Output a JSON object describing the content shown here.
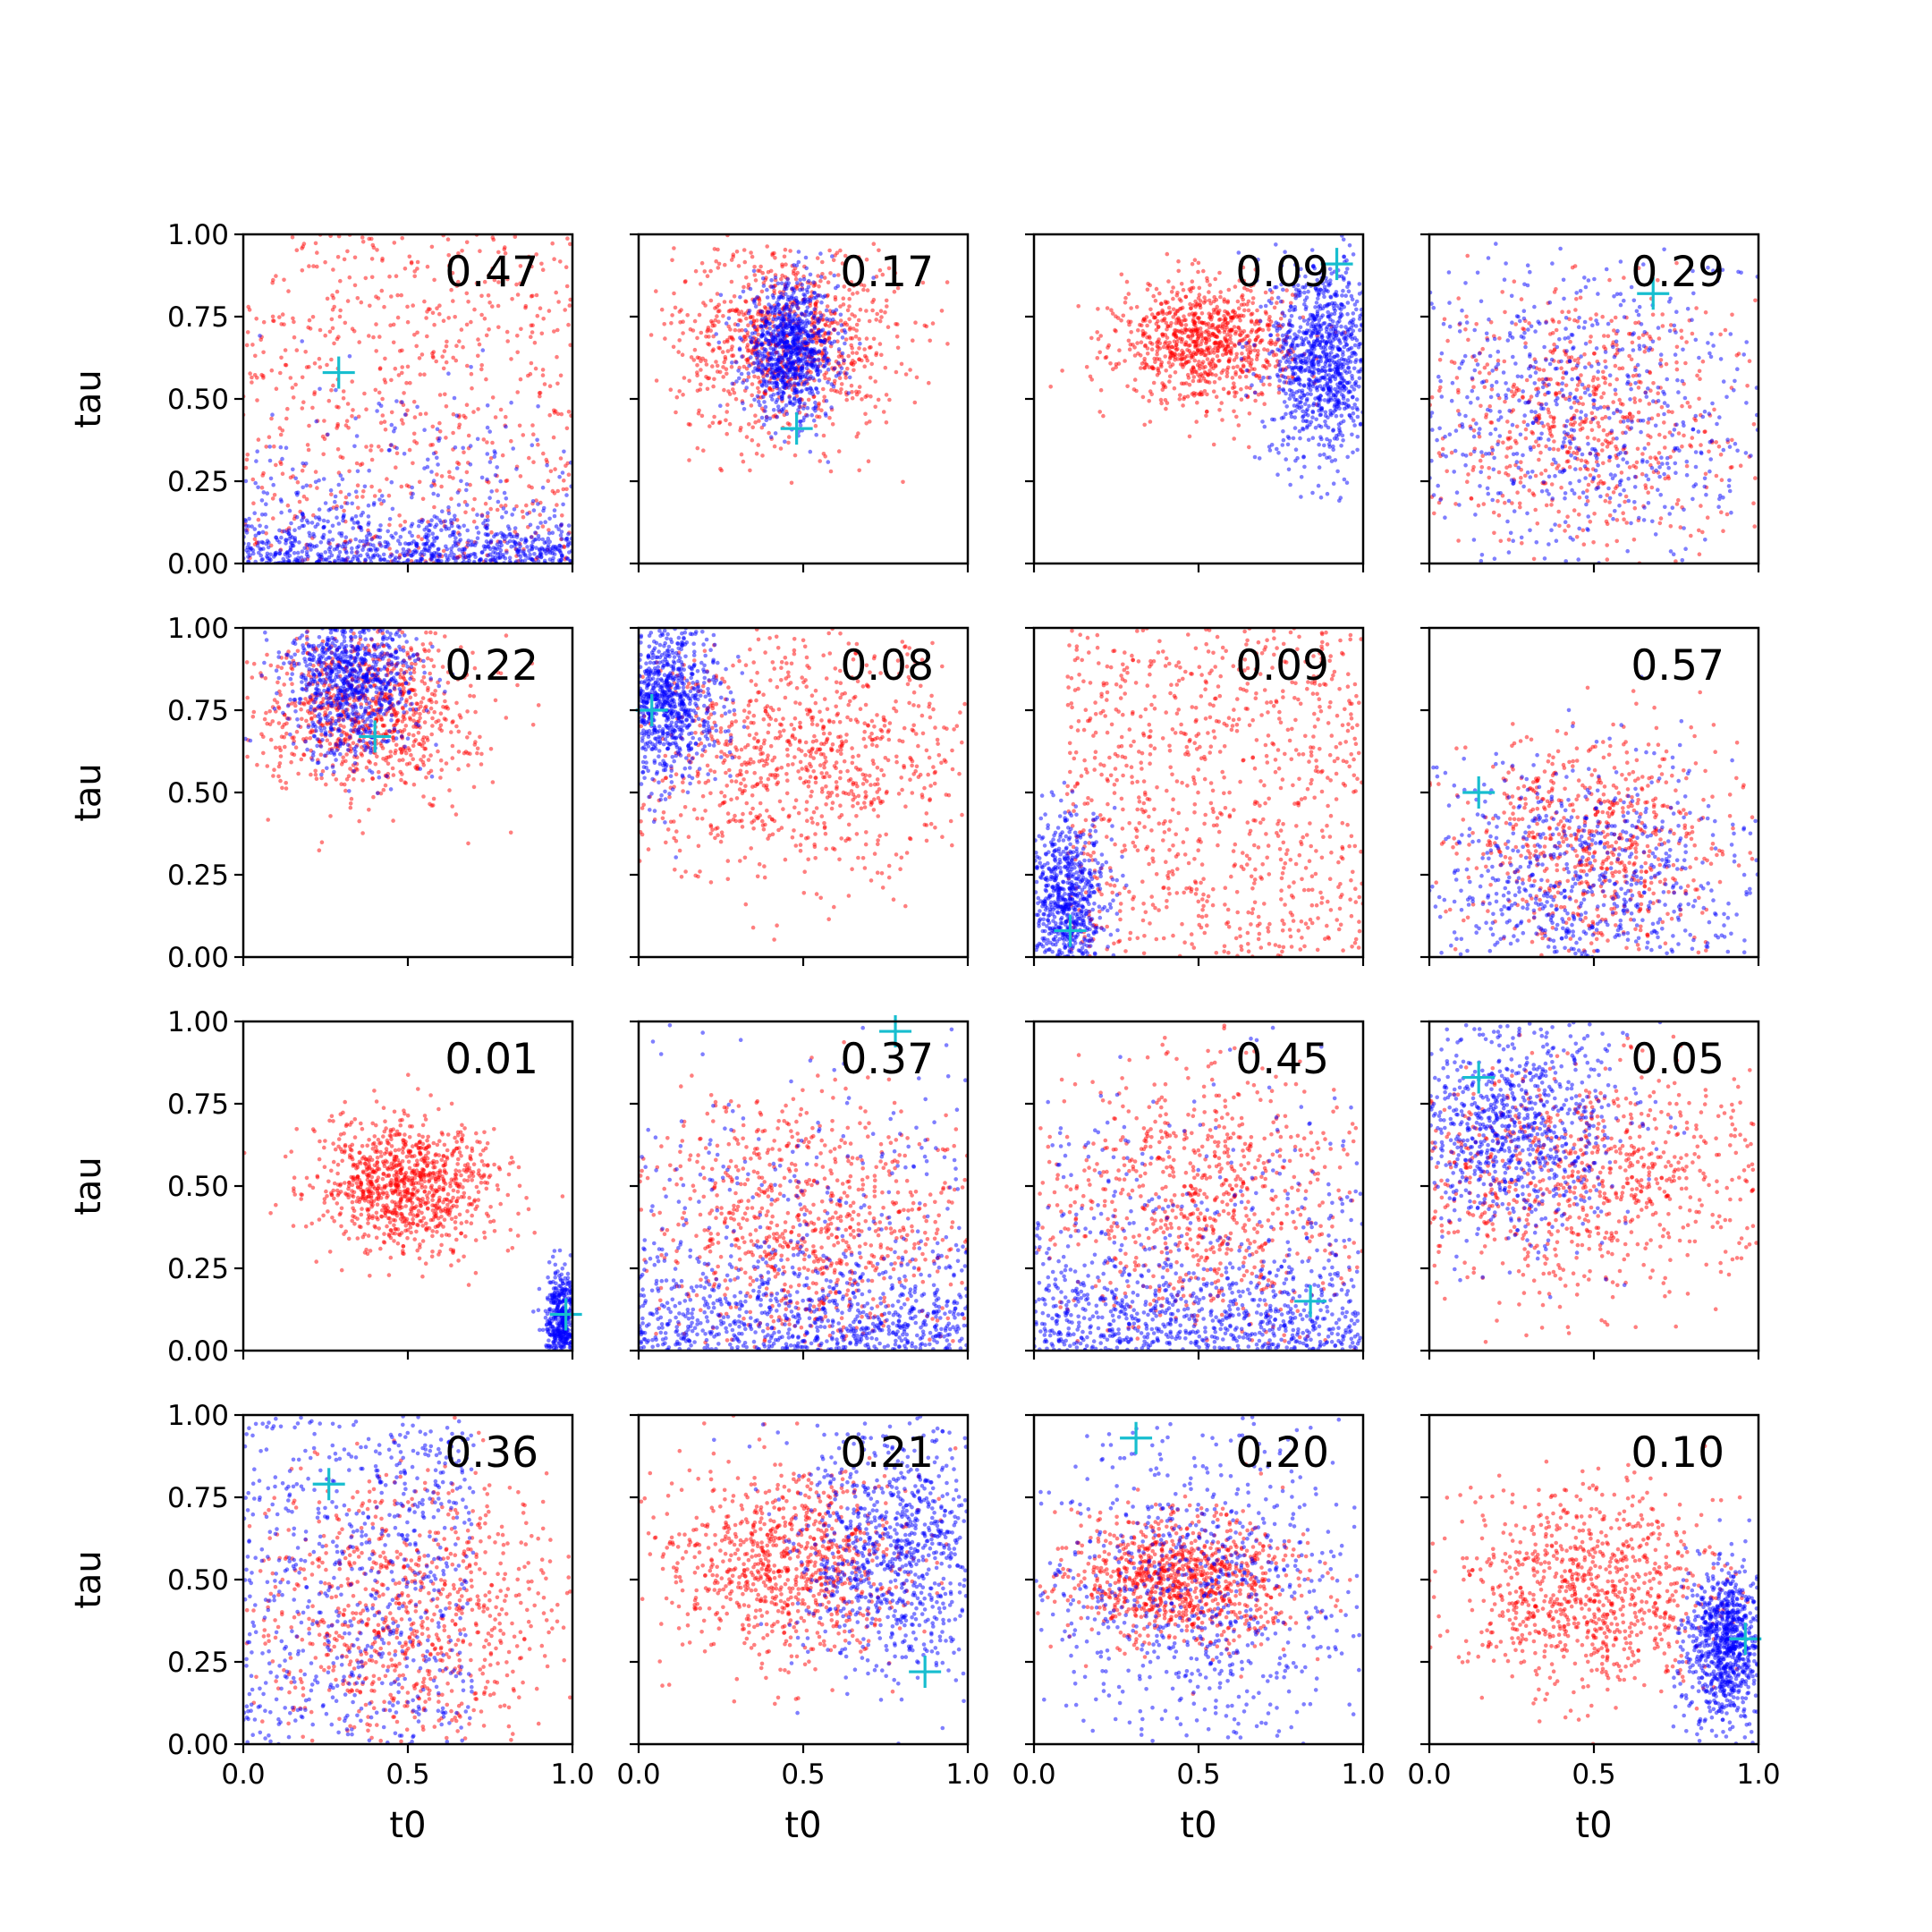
{
  "chart_data": {
    "type": "scatter",
    "grid": {
      "rows": 4,
      "cols": 4
    },
    "xlabel": "t0",
    "ylabel": "tau",
    "xlim": [
      0,
      1
    ],
    "ylim": [
      0,
      1
    ],
    "xticks": [
      "0.0",
      "0.5",
      "1.0"
    ],
    "yticks": [
      "0.00",
      "0.25",
      "0.50",
      "0.75",
      "1.00"
    ],
    "colors": {
      "red": "#ff0000",
      "blue": "#0000ff",
      "marker": "#17becf"
    },
    "panels": [
      {
        "score": "0.47",
        "marker": [
          0.29,
          0.58
        ],
        "red": {
          "shape": "uniform",
          "cx": 0.5,
          "cy": 0.5,
          "sx": 0.5,
          "sy": 0.5,
          "n": 700
        },
        "blue": {
          "shape": "bottom_uniform",
          "cx": 0.5,
          "cy": 0.0,
          "sx": 0.5,
          "sy": 0.4,
          "n": 900
        }
      },
      {
        "score": "0.17",
        "marker": [
          0.48,
          0.41
        ],
        "red": {
          "shape": "normal",
          "cx": 0.45,
          "cy": 0.68,
          "sx": 0.17,
          "sy": 0.15,
          "n": 900
        },
        "blue": {
          "shape": "normal",
          "cx": 0.46,
          "cy": 0.65,
          "sx": 0.07,
          "sy": 0.1,
          "n": 900
        }
      },
      {
        "score": "0.09",
        "marker": [
          0.92,
          0.91
        ],
        "red": {
          "shape": "normal",
          "cx": 0.52,
          "cy": 0.67,
          "sx": 0.13,
          "sy": 0.09,
          "n": 900
        },
        "blue": {
          "shape": "normal",
          "cx": 0.88,
          "cy": 0.62,
          "sx": 0.08,
          "sy": 0.15,
          "n": 1000
        }
      },
      {
        "score": "0.29",
        "marker": [
          0.68,
          0.82
        ],
        "red": {
          "shape": "normal",
          "cx": 0.45,
          "cy": 0.45,
          "sx": 0.25,
          "sy": 0.2,
          "n": 700
        },
        "blue": {
          "shape": "normal",
          "cx": 0.45,
          "cy": 0.45,
          "sx": 0.3,
          "sy": 0.25,
          "n": 700
        }
      },
      {
        "score": "0.22",
        "marker": [
          0.4,
          0.67
        ],
        "red": {
          "shape": "normal",
          "cx": 0.38,
          "cy": 0.75,
          "sx": 0.16,
          "sy": 0.13,
          "n": 900
        },
        "blue": {
          "shape": "normal",
          "cx": 0.33,
          "cy": 0.85,
          "sx": 0.1,
          "sy": 0.12,
          "n": 900
        }
      },
      {
        "score": "0.08",
        "marker": [
          0.04,
          0.75
        ],
        "red": {
          "shape": "normal",
          "cx": 0.5,
          "cy": 0.6,
          "sx": 0.27,
          "sy": 0.18,
          "n": 900
        },
        "blue": {
          "shape": "normal",
          "cx": 0.08,
          "cy": 0.78,
          "sx": 0.08,
          "sy": 0.12,
          "n": 900
        }
      },
      {
        "score": "0.09",
        "marker": [
          0.11,
          0.08
        ],
        "red": {
          "shape": "uniform",
          "cx": 0.55,
          "cy": 0.5,
          "sx": 0.45,
          "sy": 0.5,
          "n": 900
        },
        "blue": {
          "shape": "normal",
          "cx": 0.1,
          "cy": 0.17,
          "sx": 0.06,
          "sy": 0.12,
          "n": 700
        }
      },
      {
        "score": "0.57",
        "marker": [
          0.15,
          0.5
        ],
        "red": {
          "shape": "normal",
          "cx": 0.5,
          "cy": 0.35,
          "sx": 0.2,
          "sy": 0.17,
          "n": 700
        },
        "blue": {
          "shape": "normal",
          "cx": 0.45,
          "cy": 0.2,
          "sx": 0.28,
          "sy": 0.2,
          "n": 800
        }
      },
      {
        "score": "0.01",
        "marker": [
          0.98,
          0.11
        ],
        "red": {
          "shape": "normal",
          "cx": 0.5,
          "cy": 0.5,
          "sx": 0.14,
          "sy": 0.1,
          "n": 1000
        },
        "blue": {
          "shape": "normal",
          "cx": 0.97,
          "cy": 0.09,
          "sx": 0.025,
          "sy": 0.07,
          "n": 500
        }
      },
      {
        "score": "0.37",
        "marker": [
          0.78,
          0.97
        ],
        "red": {
          "shape": "normal",
          "cx": 0.5,
          "cy": 0.38,
          "sx": 0.27,
          "sy": 0.2,
          "n": 900
        },
        "blue": {
          "shape": "bottom_uniform",
          "cx": 0.5,
          "cy": 0.0,
          "sx": 0.5,
          "sy": 0.8,
          "n": 1000
        }
      },
      {
        "score": "0.45",
        "marker": [
          0.84,
          0.15
        ],
        "red": {
          "shape": "normal",
          "cx": 0.5,
          "cy": 0.45,
          "sx": 0.25,
          "sy": 0.22,
          "n": 800
        },
        "blue": {
          "shape": "bottom_uniform",
          "cx": 0.5,
          "cy": 0.0,
          "sx": 0.5,
          "sy": 0.8,
          "n": 1000
        }
      },
      {
        "score": "0.05",
        "marker": [
          0.15,
          0.83
        ],
        "red": {
          "shape": "normal",
          "cx": 0.45,
          "cy": 0.5,
          "sx": 0.3,
          "sy": 0.18,
          "n": 900
        },
        "blue": {
          "shape": "normal",
          "cx": 0.25,
          "cy": 0.68,
          "sx": 0.17,
          "sy": 0.17,
          "n": 900
        }
      },
      {
        "score": "0.36",
        "marker": [
          0.26,
          0.79
        ],
        "red": {
          "shape": "normal",
          "cx": 0.5,
          "cy": 0.4,
          "sx": 0.25,
          "sy": 0.2,
          "n": 900
        },
        "blue": {
          "shape": "uniform",
          "cx": 0.35,
          "cy": 0.5,
          "sx": 0.35,
          "sy": 0.5,
          "n": 700
        }
      },
      {
        "score": "0.21",
        "marker": [
          0.87,
          0.22
        ],
        "red": {
          "shape": "normal",
          "cx": 0.45,
          "cy": 0.55,
          "sx": 0.18,
          "sy": 0.14,
          "n": 900
        },
        "blue": {
          "shape": "normal",
          "cx": 0.78,
          "cy": 0.6,
          "sx": 0.15,
          "sy": 0.2,
          "n": 900
        }
      },
      {
        "score": "0.20",
        "marker": [
          0.31,
          0.93
        ],
        "red": {
          "shape": "normal",
          "cx": 0.45,
          "cy": 0.5,
          "sx": 0.17,
          "sy": 0.1,
          "n": 1000
        },
        "blue": {
          "shape": "normal",
          "cx": 0.5,
          "cy": 0.45,
          "sx": 0.25,
          "sy": 0.25,
          "n": 800
        }
      },
      {
        "score": "0.10",
        "marker": [
          0.96,
          0.32
        ],
        "red": {
          "shape": "normal",
          "cx": 0.5,
          "cy": 0.45,
          "sx": 0.2,
          "sy": 0.15,
          "n": 900
        },
        "blue": {
          "shape": "normal",
          "cx": 0.9,
          "cy": 0.3,
          "sx": 0.06,
          "sy": 0.12,
          "n": 900
        }
      }
    ]
  }
}
